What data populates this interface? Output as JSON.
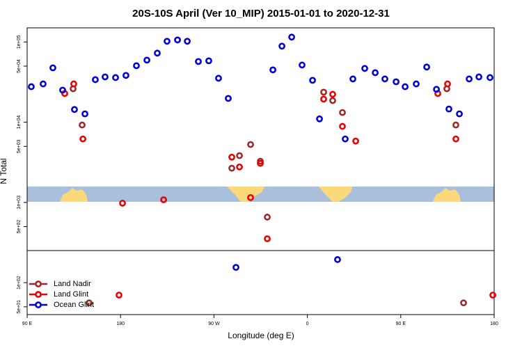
{
  "chart_data": {
    "type": "scatter",
    "title": "20S-10S April (Ver 10_MIP)   2015-01-01 to 2020-12-31",
    "xlabel": "Longitude (deg E)",
    "ylabel": "N Total",
    "ylog": true,
    "xlim": [
      90,
      540
    ],
    "ylim": [
      40,
      150000
    ],
    "xticks": [
      {
        "value": 90,
        "label": "90 E"
      },
      {
        "value": 180,
        "label": "180"
      },
      {
        "value": 270,
        "label": "90 W"
      },
      {
        "value": 360,
        "label": "0"
      },
      {
        "value": 450,
        "label": "90 E"
      },
      {
        "value": 540,
        "label": "180"
      }
    ],
    "yticks": [
      {
        "value": 100000,
        "label": "1e+05"
      },
      {
        "value": 50000,
        "label": "5e+04"
      },
      {
        "value": 10000,
        "label": "1e+04"
      },
      {
        "value": 5000,
        "label": "5e+03"
      },
      {
        "value": 1000,
        "label": "1e+03"
      },
      {
        "value": 500,
        "label": "5e+02"
      },
      {
        "value": 100,
        "label": "1e+02"
      },
      {
        "value": 50,
        "label": "5e+01"
      }
    ],
    "legend": "bottom-left",
    "series": [
      {
        "name": "Land Nadir",
        "color": "#a02828",
        "x": [
          134.3,
          143,
          149.7,
          287.2,
          294.6,
          305.3,
          314.7,
          321.4,
          375.7,
          384.4,
          393.8,
          494.4,
          503.1,
          510.5
        ],
        "values": [
          26100,
          9230,
          56,
          2670,
          3830,
          5270,
          3260,
          656,
          23700,
          18600,
          13200,
          26100,
          9230,
          56
        ]
      },
      {
        "name": "Land Glint",
        "color": "#ee0000",
        "x": [
          126.2,
          134.9,
          143.7,
          178.5,
          181.9,
          221.5,
          287.2,
          294.6,
          305.3,
          314.7,
          321.4,
          375.7,
          384.4,
          393.8,
          406.6,
          485.7,
          495.1,
          503.1,
          538.7
        ],
        "values": [
          22800,
          30000,
          6180,
          70,
          979,
          1080,
          3670,
          2770,
          1150,
          3070,
          353,
          19400,
          22300,
          8870,
          5820,
          22800,
          30000,
          6180,
          70
        ]
      },
      {
        "name": "Ocean Glint",
        "color": "#0000dd",
        "x": [
          94,
          105.4,
          114.8,
          124.2,
          135.6,
          145.7,
          155.7,
          165.1,
          175.2,
          185.2,
          195.3,
          205.4,
          215.4,
          224.8,
          234.9,
          244.3,
          255,
          265,
          274.4,
          283.8,
          291.2,
          326.8,
          335.5,
          344.9,
          354.9,
          365,
          371.7,
          389.1,
          396.5,
          403.9,
          415.3,
          425.4,
          434.7,
          445.5,
          454.2,
          464.9,
          475,
          484.4,
          496.4,
          506.5,
          515.9,
          525.3,
          536
        ],
        "values": [
          27700,
          30000,
          47600,
          25100,
          14400,
          12700,
          33900,
          36700,
          36000,
          38300,
          50600,
          59400,
          72600,
          102000,
          106000,
          102000,
          57100,
          58200,
          35300,
          19800,
          155,
          44900,
          88700,
          115000,
          51600,
          33300,
          11000,
          194,
          6180,
          34600,
          46800,
          41400,
          34600,
          31900,
          27700,
          30000,
          48700,
          25700,
          14600,
          12700,
          34600,
          36700,
          36000
        ]
      }
    ]
  }
}
